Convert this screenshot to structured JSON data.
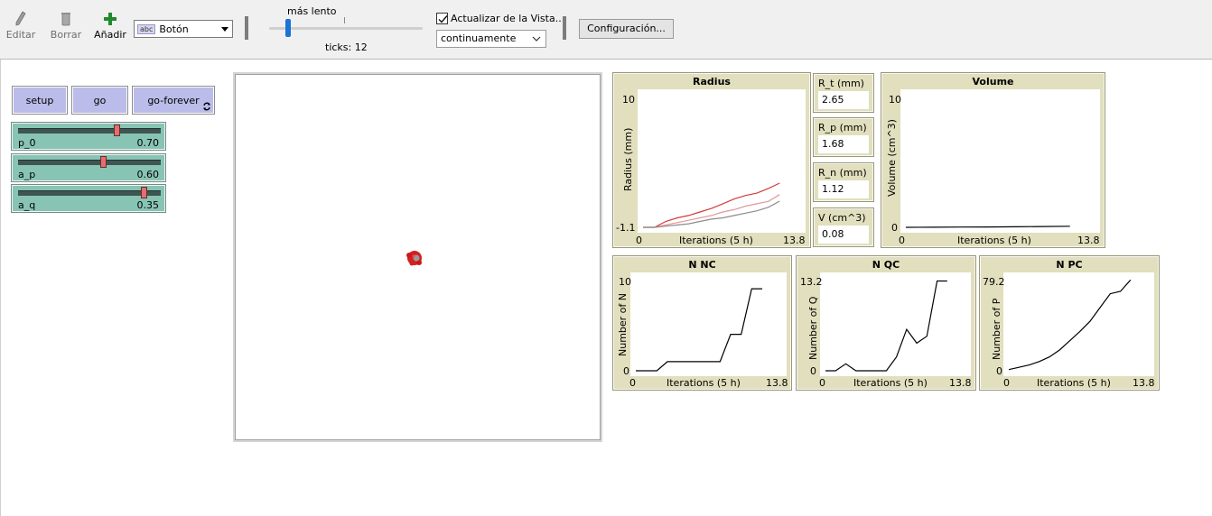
{
  "toolbar": {
    "edit_label": "Editar",
    "delete_label": "Borrar",
    "add_label": "Añadir",
    "widget_chip": "abc",
    "widget_selected": "Botón",
    "speed_label": "más lento",
    "ticks_label": "ticks: 12",
    "update_view_label": "Actualizar de la Vista...",
    "update_mode": "continuamente",
    "settings_label": "Configuración...",
    "update_checked": true
  },
  "buttons": {
    "setup": "setup",
    "go": "go",
    "go_forever": "go-forever"
  },
  "sliders": [
    {
      "name": "p_0",
      "value": "0.70",
      "fraction": 0.7
    },
    {
      "name": "a_p",
      "value": "0.60",
      "fraction": 0.6
    },
    {
      "name": "a_q",
      "value": "0.35",
      "fraction": 0.9
    }
  ],
  "monitors": [
    {
      "name": "R_t (mm)",
      "value": "2.65"
    },
    {
      "name": "R_p (mm)",
      "value": "1.68"
    },
    {
      "name": "R_n (mm)",
      "value": "1.12"
    },
    {
      "name": "V (cm^3)",
      "value": "0.08"
    }
  ],
  "plots": {
    "radius": {
      "title": "Radius",
      "ylabel": "Radius (mm)",
      "xlabel": "Iterations (5 h)",
      "ymax": "10",
      "ymin": "-1.1",
      "xmin": "0",
      "xmax": "13.8"
    },
    "volume": {
      "title": "Volume",
      "ylabel": "Volume (cm^3)",
      "xlabel": "Iterations (5 h)",
      "ymax": "10",
      "ymin": "0",
      "xmin": "0",
      "xmax": "13.8"
    },
    "nnc": {
      "title": "N NC",
      "ylabel": "Number of N",
      "xlabel": "Iterations (5 h)",
      "ymax": "10",
      "ymin": "0",
      "xmin": "0",
      "xmax": "13.8"
    },
    "nqc": {
      "title": "N QC",
      "ylabel": "Number of Q",
      "xlabel": "Iterations (5 h)",
      "ymax": "13.2",
      "ymin": "0",
      "xmin": "0",
      "xmax": "13.8"
    },
    "npc": {
      "title": "N PC",
      "ylabel": "Number of P",
      "xlabel": "Iterations (5 h)",
      "ymax": "79.2",
      "ymin": "0",
      "xmin": "0",
      "xmax": "13.8"
    }
  },
  "colors": {
    "button_bg": "#bcbcea",
    "slider_bg": "#88c4b4",
    "plot_bg": "#e1dfbd",
    "turtle": "#d42020"
  },
  "chart_data": [
    {
      "type": "line",
      "title": "Radius",
      "xlabel": "Iterations (5 h)",
      "ylabel": "Radius (mm)",
      "xlim": [
        0,
        13.8
      ],
      "ylim": [
        -1.1,
        10
      ],
      "series": [
        {
          "color": "#d43a3a",
          "x": [
            0,
            1,
            2,
            3,
            4,
            5,
            6,
            7,
            8,
            9,
            10,
            11,
            12
          ],
          "y": [
            -1.1,
            -1.1,
            -0.6,
            -0.3,
            -0.1,
            0.2,
            0.5,
            0.9,
            1.3,
            1.6,
            1.8,
            2.2,
            2.65
          ]
        },
        {
          "color": "#e39898",
          "x": [
            0,
            1,
            2,
            3,
            4,
            5,
            6,
            7,
            8,
            9,
            10,
            11,
            12
          ],
          "y": [
            -1.1,
            -1.1,
            -0.9,
            -0.7,
            -0.5,
            -0.3,
            -0.1,
            0.2,
            0.4,
            0.7,
            0.9,
            1.1,
            1.68
          ]
        },
        {
          "color": "#8c8c8c",
          "x": [
            0,
            1,
            2,
            3,
            4,
            5,
            6,
            7,
            8,
            9,
            10,
            11,
            12
          ],
          "y": [
            -1.1,
            -1.1,
            -1.0,
            -0.9,
            -0.8,
            -0.6,
            -0.4,
            -0.3,
            -0.1,
            0.1,
            0.3,
            0.6,
            1.12
          ]
        }
      ]
    },
    {
      "type": "line",
      "title": "Volume",
      "xlabel": "Iterations (5 h)",
      "ylabel": "Volume (cm^3)",
      "xlim": [
        0,
        13.8
      ],
      "ylim": [
        0,
        10
      ],
      "series": [
        {
          "color": "#000000",
          "x": [
            0,
            2,
            4,
            6,
            8,
            10,
            12
          ],
          "y": [
            0,
            0.01,
            0.02,
            0.03,
            0.04,
            0.06,
            0.08
          ]
        }
      ]
    },
    {
      "type": "line",
      "title": "N NC",
      "xlabel": "Iterations (5 h)",
      "ylabel": "Number of N",
      "xlim": [
        0,
        13.8
      ],
      "ylim": [
        0,
        10
      ],
      "series": [
        {
          "color": "#000000",
          "x": [
            0,
            1,
            2,
            3,
            4,
            5,
            6,
            7,
            8,
            9,
            10,
            11,
            12
          ],
          "y": [
            0,
            0,
            0,
            1,
            1,
            1,
            1,
            1,
            1,
            4,
            4,
            9,
            9
          ]
        }
      ]
    },
    {
      "type": "line",
      "title": "N QC",
      "xlabel": "Iterations (5 h)",
      "ylabel": "Number of Q",
      "xlim": [
        0,
        13.8
      ],
      "ylim": [
        0,
        13.2
      ],
      "series": [
        {
          "color": "#000000",
          "x": [
            0,
            1,
            2,
            3,
            4,
            5,
            6,
            7,
            8,
            9,
            10,
            11,
            12
          ],
          "y": [
            0,
            0,
            1,
            0,
            0,
            0,
            0,
            2,
            6,
            4,
            5,
            13,
            13
          ]
        }
      ]
    },
    {
      "type": "line",
      "title": "N PC",
      "xlabel": "Iterations (5 h)",
      "ylabel": "Number of P",
      "xlim": [
        0,
        13.8
      ],
      "ylim": [
        0,
        79.2
      ],
      "series": [
        {
          "color": "#000000",
          "x": [
            0,
            1,
            2,
            3,
            4,
            5,
            6,
            7,
            8,
            9,
            10,
            11,
            12
          ],
          "y": [
            1,
            3,
            5,
            8,
            12,
            18,
            26,
            34,
            43,
            55,
            67,
            69,
            79
          ]
        }
      ]
    }
  ]
}
